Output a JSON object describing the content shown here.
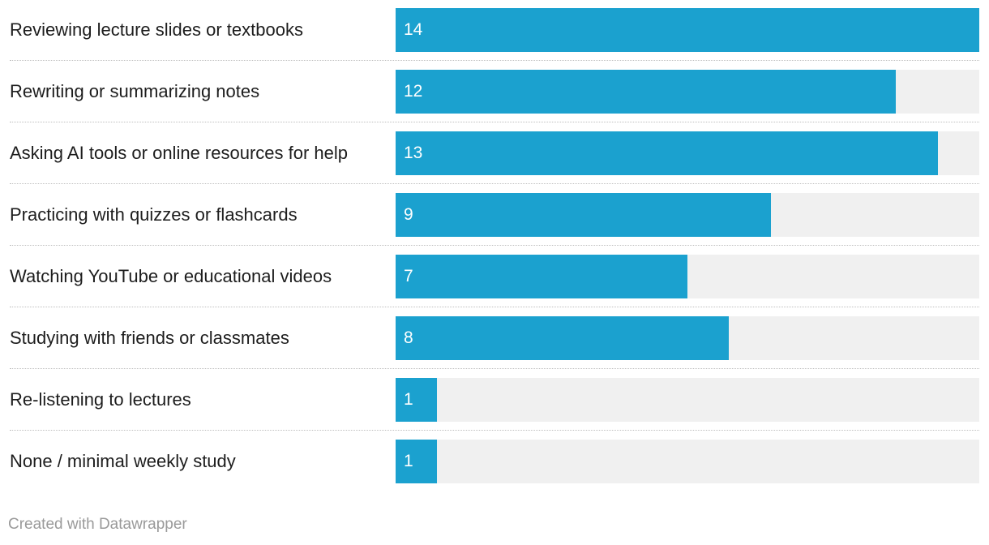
{
  "chart_data": {
    "type": "bar",
    "orientation": "horizontal",
    "categories": [
      "Reviewing lecture slides or textbooks",
      "Rewriting or summarizing notes",
      "Asking AI tools or online resources for help",
      "Practicing with quizzes or flashcards",
      "Watching YouTube or educational videos",
      "Studying with friends or classmates",
      "Re-listening to lectures",
      "None / minimal weekly study"
    ],
    "values": [
      14,
      12,
      13,
      9,
      7,
      8,
      1,
      1
    ],
    "xlim": [
      0,
      14
    ],
    "grid": false,
    "title": "",
    "xlabel": "",
    "ylabel": ""
  },
  "colors": {
    "bar": "#1ba1cf",
    "track": "#f0f0f0",
    "label_text": "#1d1d1d",
    "value_text": "#ffffff",
    "credit_text": "#9a9a9a"
  },
  "footer": {
    "credit": "Created with Datawrapper"
  }
}
